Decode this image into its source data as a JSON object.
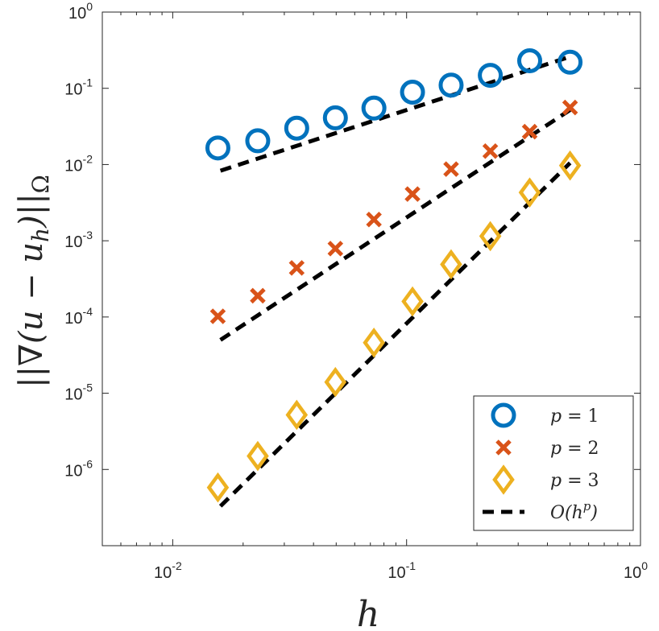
{
  "chart_data": {
    "type": "scatter",
    "title": "",
    "xlabel": "h",
    "ylabel": "||∇(u − u_h)||_Ω",
    "xscale": "log",
    "yscale": "log",
    "xlim": [
      0.005,
      1
    ],
    "ylim": [
      1e-07,
      1
    ],
    "xticks": [
      {
        "value": 0.01,
        "base": "10",
        "exp": "-2"
      },
      {
        "value": 0.1,
        "base": "10",
        "exp": "-1"
      },
      {
        "value": 1,
        "base": "10",
        "exp": "0"
      }
    ],
    "yticks": [
      {
        "value": 1e-06,
        "base": "10",
        "exp": "-6"
      },
      {
        "value": 1e-05,
        "base": "10",
        "exp": "-5"
      },
      {
        "value": 0.0001,
        "base": "10",
        "exp": "-4"
      },
      {
        "value": 0.001,
        "base": "10",
        "exp": "-3"
      },
      {
        "value": 0.01,
        "base": "10",
        "exp": "-2"
      },
      {
        "value": 0.1,
        "base": "10",
        "exp": "-1"
      },
      {
        "value": 1,
        "base": "10",
        "exp": "0"
      }
    ],
    "x": [
      0.0156,
      0.0231,
      0.0339,
      0.0496,
      0.0725,
      0.106,
      0.155,
      0.228,
      0.336,
      0.5
    ],
    "series": [
      {
        "name": "p = 1",
        "marker": "circle",
        "color": "#0072BD",
        "values": [
          0.0165,
          0.0205,
          0.03,
          0.041,
          0.055,
          0.089,
          0.11,
          0.148,
          0.23,
          0.22
        ]
      },
      {
        "name": "p = 2",
        "marker": "x",
        "color": "#D95319",
        "values": [
          0.000102,
          0.00019,
          0.00044,
          0.00079,
          0.0019,
          0.0041,
          0.0087,
          0.015,
          0.027,
          0.056
        ]
      },
      {
        "name": "p = 3",
        "marker": "diamond",
        "color": "#EDB120",
        "values": [
          5.8e-07,
          1.5e-06,
          5.2e-06,
          1.4e-05,
          4.6e-05,
          0.00016,
          0.00049,
          0.00115,
          0.0043,
          0.0097
        ]
      }
    ],
    "reference_lines": [
      {
        "x": [
          0.016,
          0.5
        ],
        "y": [
          0.0083,
          0.26
        ]
      },
      {
        "x": [
          0.016,
          0.5
        ],
        "y": [
          5e-05,
          0.052
        ]
      },
      {
        "x": [
          0.016,
          0.5
        ],
        "y": [
          3.3e-07,
          0.0105
        ]
      }
    ],
    "reference_legend": "O(h^p)",
    "legend": [
      {
        "symbol": "circle",
        "color": "#0072BD",
        "prefix": "p",
        "suffix": " = 1",
        "sup": ""
      },
      {
        "symbol": "x",
        "color": "#D95319",
        "prefix": "p",
        "suffix": " = 2",
        "sup": ""
      },
      {
        "symbol": "diamond",
        "color": "#EDB120",
        "prefix": "p",
        "suffix": " = 3",
        "sup": ""
      },
      {
        "symbol": "dash",
        "color": "#000000",
        "prefix": "O(h",
        "suffix": ")",
        "sup": "p"
      }
    ],
    "legend_position": "bottom-right",
    "grid": false
  }
}
